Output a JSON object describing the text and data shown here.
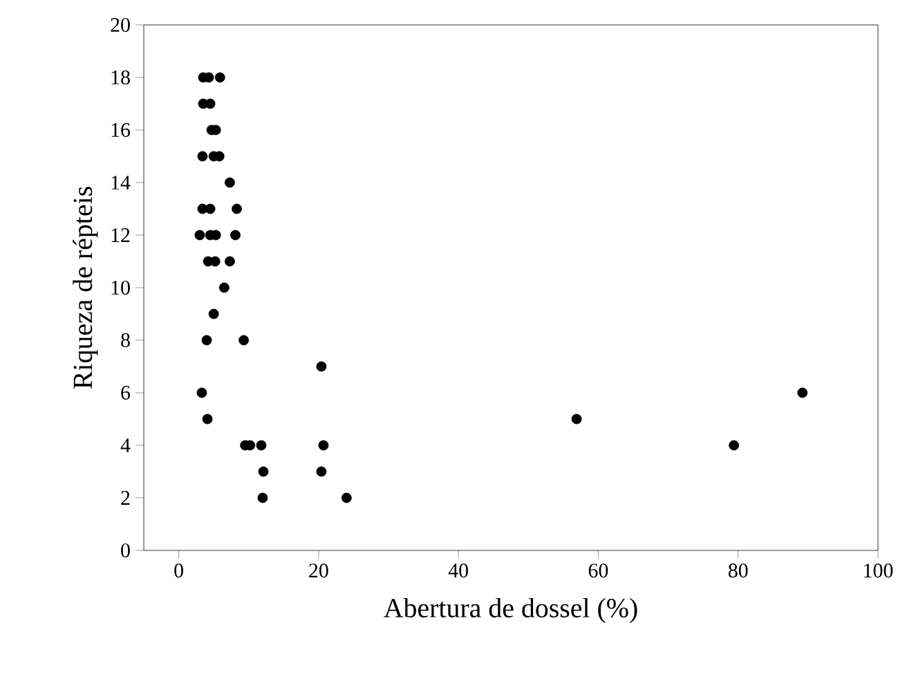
{
  "chart_data": {
    "type": "scatter",
    "xlabel": "Abertura de dossel (%)",
    "ylabel": "Riqueza de répteis",
    "color": "#000000",
    "grid": false,
    "x": [
      3.5,
      4.3,
      5.9,
      3.5,
      4.5,
      4.7,
      5.3,
      3.4,
      5.0,
      5.8,
      7.3,
      3.4,
      4.5,
      8.3,
      3.0,
      4.5,
      5.3,
      8.1,
      4.2,
      5.2,
      7.3,
      6.5,
      5.0,
      4.0,
      9.3,
      20.4,
      3.3,
      4.1,
      9.5,
      10.2,
      11.8,
      20.7,
      12.1,
      20.4,
      12.0,
      24.0,
      56.9,
      79.4,
      89.2
    ],
    "values": [
      18,
      18,
      18,
      17,
      17,
      16,
      16,
      15,
      15,
      15,
      14,
      13,
      13,
      13,
      12,
      12,
      12,
      12,
      11,
      11,
      11,
      10,
      9,
      8,
      8,
      7,
      6,
      5,
      4,
      4,
      4,
      4,
      3,
      3,
      2,
      2,
      5,
      4,
      6
    ],
    "xlim": [
      -5,
      100
    ],
    "ylim": [
      0,
      20
    ],
    "xticks": [
      0,
      20,
      40,
      60,
      80,
      100
    ],
    "yticks": [
      0,
      2,
      4,
      6,
      8,
      10,
      12,
      14,
      16,
      18,
      20
    ]
  }
}
